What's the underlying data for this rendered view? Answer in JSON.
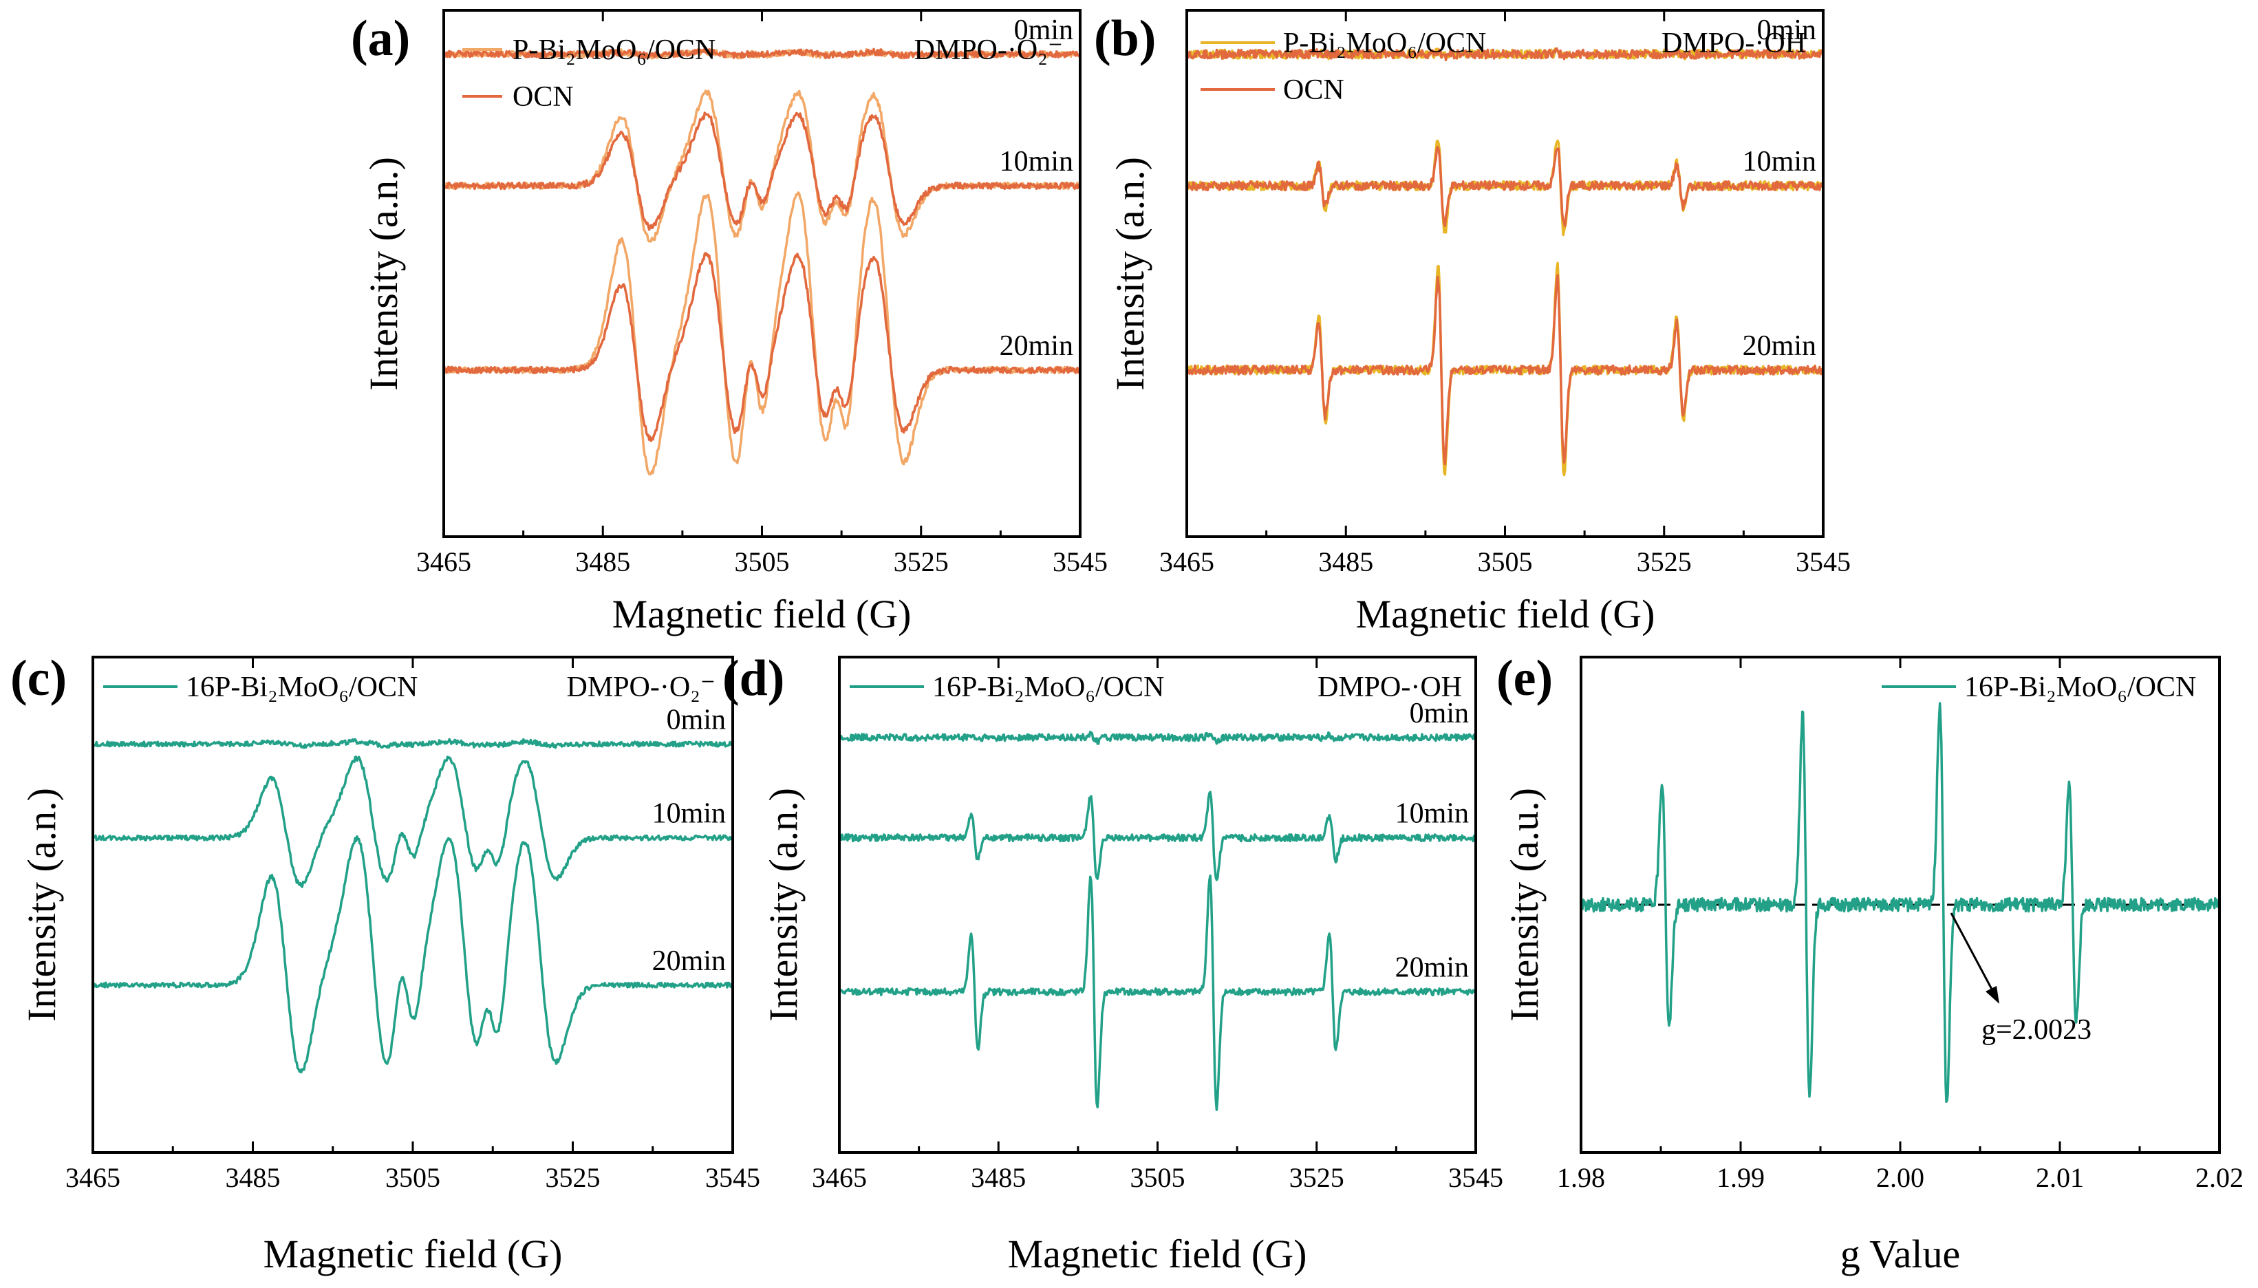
{
  "colors": {
    "orange_light": "#F2A766",
    "orange_red": "#E2683E",
    "gold": "#E8B526",
    "teal": "#22A188"
  },
  "chart_data": [
    {
      "id": "a",
      "panel_label": "(a)",
      "type": "line",
      "title": "",
      "xlabel": "Magnetic field (G)",
      "ylabel": "Intensity (a.n.)",
      "xlim": [
        3465,
        3545
      ],
      "xticks": [
        "3465",
        "3485",
        "3505",
        "3525",
        "3545"
      ],
      "annotation": "DMPO-·O₂⁻",
      "legend_position": "top-left",
      "spectrum": "superoxide",
      "offsets": [
        4.0,
        2.5,
        0.4
      ],
      "ylim": [
        -1.5,
        4.5
      ],
      "time_labels": [
        "0min",
        "10min",
        "20min"
      ],
      "series": [
        {
          "name": "P-Bi₂MoO₆/OCN",
          "color": "orange_light",
          "amplitudes": [
            0.02,
            0.85,
            1.6
          ]
        },
        {
          "name": "OCN",
          "color": "orange_red",
          "amplitudes": [
            0.02,
            0.65,
            1.05
          ]
        }
      ]
    },
    {
      "id": "b",
      "panel_label": "(b)",
      "type": "line",
      "title": "",
      "xlabel": "Magnetic field (G)",
      "ylabel": "Intensity (a.n.)",
      "xlim": [
        3465,
        3545
      ],
      "xticks": [
        "3465",
        "3485",
        "3505",
        "3525",
        "3545"
      ],
      "annotation": "DMPO-·OH",
      "legend_position": "top-left",
      "spectrum": "hydroxyl",
      "offsets": [
        4.0,
        2.5,
        0.4
      ],
      "ylim": [
        -1.5,
        4.5
      ],
      "time_labels": [
        "0min",
        "10min",
        "20min"
      ],
      "series": [
        {
          "name": "P-Bi₂MoO₆/OCN",
          "color": "gold",
          "amplitudes": [
            0.02,
            0.55,
            1.2
          ]
        },
        {
          "name": "OCN",
          "color": "orange_red",
          "amplitudes": [
            0.02,
            0.45,
            1.05
          ]
        }
      ]
    },
    {
      "id": "c",
      "panel_label": "(c)",
      "type": "line",
      "title": "",
      "xlabel": "Magnetic field (G)",
      "ylabel": "Intensity (a.n.)",
      "xlim": [
        3465,
        3545
      ],
      "xticks": [
        "3465",
        "3485",
        "3505",
        "3525",
        "3545"
      ],
      "annotation": "DMPO-·O₂⁻",
      "legend_position": "top-left",
      "spectrum": "superoxide",
      "offsets": [
        4.3,
        2.9,
        0.7
      ],
      "ylim": [
        -1.8,
        5.6
      ],
      "time_labels": [
        "0min",
        "10min",
        "20min"
      ],
      "series": [
        {
          "name": "16P-Bi₂MoO₆/OCN",
          "color": "teal",
          "amplitudes": [
            0.03,
            0.95,
            1.75
          ]
        }
      ]
    },
    {
      "id": "d",
      "panel_label": "(d)",
      "type": "line",
      "title": "",
      "xlabel": "Magnetic field (G)",
      "ylabel": "Intensity (a.n.)",
      "xlim": [
        3465,
        3545
      ],
      "xticks": [
        "3465",
        "3485",
        "3505",
        "3525",
        "3545"
      ],
      "annotation": "DMPO-·OH",
      "legend_position": "top-left",
      "spectrum": "hydroxyl",
      "offsets": [
        4.4,
        2.9,
        0.6
      ],
      "ylim": [
        -1.8,
        5.6
      ],
      "time_labels": [
        "0min",
        "10min",
        "20min"
      ],
      "series": [
        {
          "name": "16P-Bi₂MoO₆/OCN",
          "color": "teal",
          "amplitudes": [
            0.05,
            0.65,
            1.75
          ]
        }
      ]
    },
    {
      "id": "e",
      "panel_label": "(e)",
      "type": "line",
      "title": "",
      "xlabel": "g Value",
      "ylabel": "Intensity (a.u.)",
      "xlim": [
        1.98,
        2.02
      ],
      "xticks": [
        "1.98",
        "1.99",
        "2.00",
        "2.01",
        "2.02"
      ],
      "annotation": "g=2.0023",
      "baseline_y": 0,
      "legend_position": "top-right",
      "spectrum": "g-value",
      "ylim": [
        -1.3,
        1.3
      ],
      "lines": [
        {
          "center": 1.9853,
          "amplitude": 0.65
        },
        {
          "center": 1.9941,
          "amplitude": 1.0
        },
        {
          "center": 2.0027,
          "amplitude": 1.05
        },
        {
          "center": 2.0108,
          "amplitude": 0.62
        }
      ],
      "series": [
        {
          "name": "16P-Bi₂MoO₆/OCN",
          "color": "teal"
        }
      ]
    }
  ]
}
